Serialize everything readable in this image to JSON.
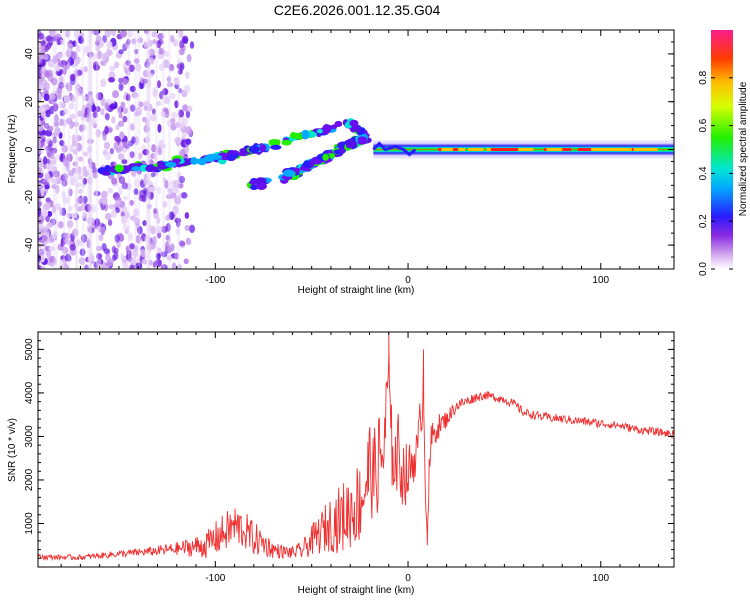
{
  "figure": {
    "title": "C2E6.2026.001.12.35.G04"
  },
  "colors": {
    "snr_line": "#f03030",
    "frame": "#000000"
  },
  "chart_data": [
    {
      "type": "heatmap",
      "name": "spectrogram",
      "title": "",
      "xlabel": "Height of straight line (km)",
      "ylabel": "Frequency (Hz)",
      "xlim": [
        -192,
        138
      ],
      "ylim": [
        -50,
        50
      ],
      "x_ticks": [
        -100,
        0,
        100
      ],
      "y_ticks": [
        -40,
        -20,
        0,
        20,
        40
      ],
      "colorbar": {
        "label": "Normalized spectral amplitude",
        "range": [
          0,
          1
        ],
        "ticks": [
          "0.0",
          "0.2",
          "0.4",
          "0.6",
          "0.8"
        ],
        "tick_values": [
          0.0,
          0.2,
          0.4,
          0.6,
          0.8
        ]
      },
      "features": [
        {
          "name": "main-doppler-track",
          "x": [
            -160,
            -130,
            -110,
            -90,
            -70,
            -55,
            -40,
            -30,
            -25,
            -20
          ],
          "freq_hz": [
            -9,
            -7,
            -5,
            -2,
            2,
            6,
            9,
            11,
            8,
            3
          ]
        },
        {
          "name": "secondary-track",
          "x": [
            -65,
            -55,
            -45,
            -35,
            -28,
            -22
          ],
          "freq_hz": [
            -12,
            -8,
            -4,
            0,
            3,
            5
          ]
        },
        {
          "name": "side-blob",
          "x": [
            -82,
            -72
          ],
          "freq_hz": [
            -15,
            -14
          ]
        },
        {
          "name": "steady-carrier",
          "x": [
            -18,
            138
          ],
          "freq_hz": [
            0,
            0
          ],
          "amplitude": 0.95
        }
      ]
    },
    {
      "type": "line",
      "name": "snr",
      "title": "",
      "xlabel": "Height of straight line (km)",
      "ylabel": "SNR (10 * v/v)",
      "xlim": [
        -192,
        138
      ],
      "ylim": [
        0,
        5400
      ],
      "x_ticks": [
        -100,
        0,
        100
      ],
      "y_ticks": [
        1000,
        2000,
        3000,
        4000,
        5000
      ],
      "series": [
        {
          "name": "SNR",
          "x": [
            -192,
            -170,
            -150,
            -135,
            -120,
            -105,
            -100,
            -95,
            -90,
            -85,
            -80,
            -75,
            -70,
            -65,
            -60,
            -55,
            -50,
            -45,
            -40,
            -35,
            -30,
            -25,
            -22,
            -20,
            -18,
            -15,
            -13,
            -11,
            -10,
            -9,
            -8,
            -7,
            -5,
            -3,
            0,
            2,
            5,
            8,
            9,
            10,
            11,
            12,
            15,
            20,
            25,
            30,
            35,
            40,
            45,
            50,
            55,
            60,
            70,
            80,
            90,
            100,
            110,
            120,
            130,
            138
          ],
          "y": [
            230,
            220,
            300,
            350,
            420,
            500,
            650,
            800,
            950,
            850,
            650,
            550,
            400,
            350,
            330,
            380,
            600,
            800,
            1000,
            1100,
            1300,
            1500,
            1900,
            2300,
            2100,
            2400,
            2600,
            3500,
            4800,
            2500,
            3000,
            2400,
            2600,
            2200,
            2100,
            2400,
            2700,
            4200,
            2000,
            800,
            2000,
            2900,
            3200,
            3400,
            3700,
            3800,
            3900,
            3950,
            3900,
            3850,
            3750,
            3550,
            3450,
            3400,
            3350,
            3300,
            3250,
            3150,
            3100,
            3050
          ],
          "noise": [
            60,
            60,
            80,
            100,
            150,
            300,
            400,
            450,
            500,
            450,
            400,
            300,
            200,
            150,
            150,
            200,
            350,
            500,
            650,
            800,
            900,
            1000,
            1100,
            1200,
            1000,
            1200,
            1200,
            1200,
            500,
            1000,
            1200,
            900,
            1000,
            800,
            700,
            600,
            500,
            700,
            600,
            150,
            500,
            400,
            300,
            200,
            150,
            120,
            110,
            100,
            100,
            100,
            100,
            100,
            100,
            100,
            100,
            100,
            90,
            90,
            90,
            90
          ],
          "peaks": [
            {
              "x": -10,
              "y": 5400
            },
            {
              "x": 8,
              "y": 5000
            },
            {
              "x": 10,
              "y": 500
            }
          ]
        }
      ]
    }
  ]
}
